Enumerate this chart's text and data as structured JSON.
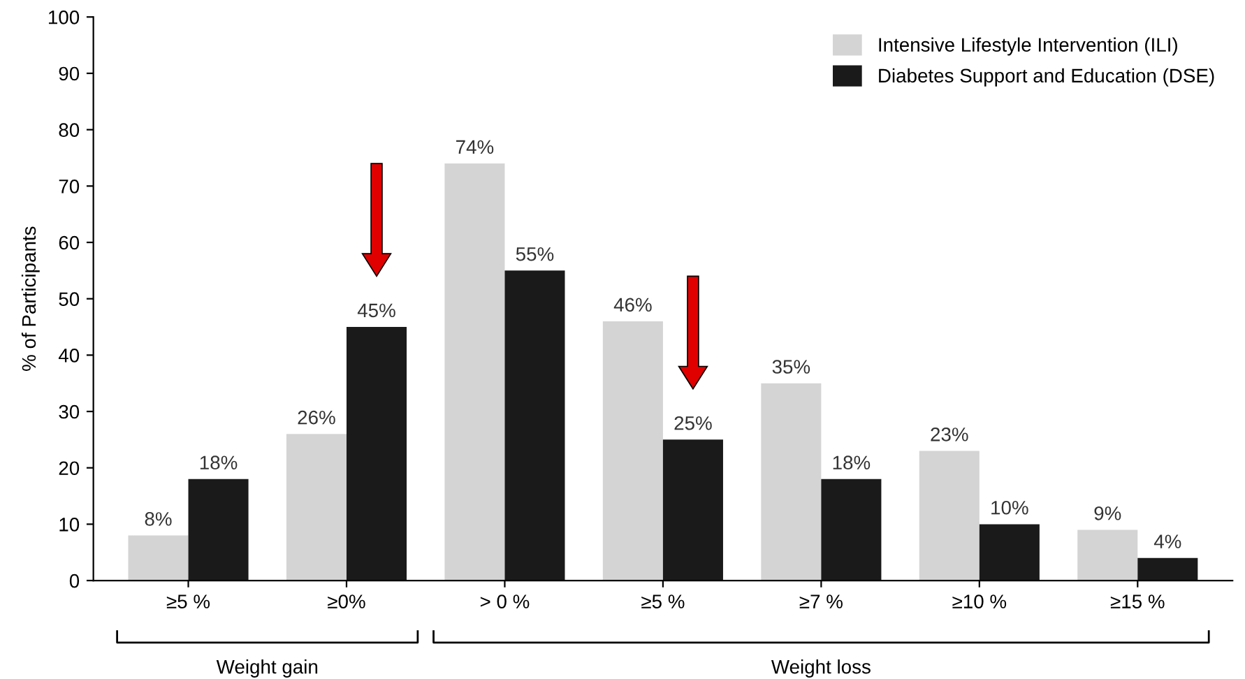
{
  "chart_data": {
    "type": "bar",
    "ylabel": "% of Participants",
    "categories": [
      "≥5 %",
      "≥0%",
      "> 0 %",
      "≥5 %",
      "≥7 %",
      "≥10 %",
      "≥15 %"
    ],
    "series": [
      {
        "name": "Intensive Lifestyle Intervention (ILI)",
        "color": "#d4d4d4",
        "values": [
          8,
          26,
          74,
          46,
          35,
          23,
          9
        ]
      },
      {
        "name": "Diabetes Support and Education (DSE)",
        "color": "#1a1a1a",
        "values": [
          18,
          45,
          55,
          25,
          18,
          10,
          4
        ]
      }
    ],
    "value_labels": [
      [
        "8%",
        "26%",
        "74%",
        "46%",
        "35%",
        "23%",
        "9%"
      ],
      [
        "18%",
        "45%",
        "55%",
        "25%",
        "18%",
        "10%",
        "4%"
      ]
    ],
    "ylim": [
      0,
      100
    ],
    "yticks": [
      0,
      10,
      20,
      30,
      40,
      50,
      60,
      70,
      80,
      90,
      100
    ],
    "annotations": [
      "Weight gain",
      "Weight loss"
    ],
    "legend": "top right",
    "grid": false
  }
}
